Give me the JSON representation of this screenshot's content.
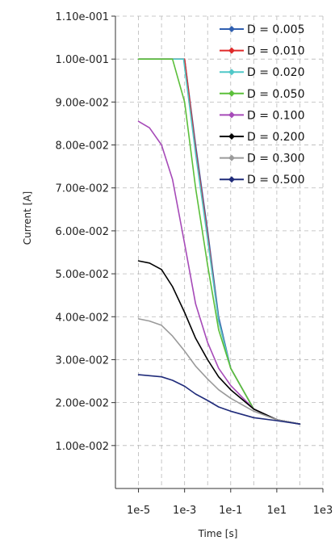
{
  "chart_data": {
    "type": "line",
    "xlabel": "Time [s]",
    "ylabel": "Current [A]",
    "x_scale": "log",
    "xlim": [
      1e-06,
      1000
    ],
    "ylim": [
      0,
      0.11
    ],
    "grid": true,
    "legend_placement": "top-right",
    "x_ticks": [
      {
        "value": 1e-05,
        "label": "1e-5"
      },
      {
        "value": 0.001,
        "label": "1e-3"
      },
      {
        "value": 0.1,
        "label": "1e-1"
      },
      {
        "value": 10,
        "label": "1e1"
      },
      {
        "value": 1000,
        "label": "1e3"
      }
    ],
    "y_ticks": [
      {
        "value": 0.01,
        "label": "1.00e-002"
      },
      {
        "value": 0.02,
        "label": "2.00e-002"
      },
      {
        "value": 0.03,
        "label": "3.00e-002"
      },
      {
        "value": 0.04,
        "label": "4.00e-002"
      },
      {
        "value": 0.05,
        "label": "5.00e-002"
      },
      {
        "value": 0.06,
        "label": "6.00e-002"
      },
      {
        "value": 0.07,
        "label": "7.00e-002"
      },
      {
        "value": 0.08,
        "label": "8.00e-002"
      },
      {
        "value": 0.09,
        "label": "9.00e-002"
      },
      {
        "value": 0.1,
        "label": "1.00e-001"
      },
      {
        "value": 0.11,
        "label": "1.10e-001"
      }
    ],
    "series": [
      {
        "name": "D = 0.005",
        "color": "#2f5fb0",
        "x": [
          1e-05,
          0.0001,
          0.001,
          0.003,
          0.01,
          0.03,
          0.1,
          1,
          10,
          100
        ],
        "y": [
          0.1,
          0.1,
          0.1,
          0.08,
          0.06,
          0.04,
          0.028,
          0.0185,
          0.016,
          0.015
        ]
      },
      {
        "name": "D = 0.010",
        "color": "#e02a2a",
        "x": [
          1e-05,
          0.0001,
          0.001,
          0.003,
          0.01,
          0.03,
          0.1,
          1,
          10,
          100
        ],
        "y": [
          0.1,
          0.1,
          0.1,
          0.079,
          0.059,
          0.039,
          0.028,
          0.0185,
          0.016,
          0.015
        ]
      },
      {
        "name": "D = 0.020",
        "color": "#4fc8c8",
        "x": [
          1e-05,
          0.0001,
          0.0009,
          0.003,
          0.01,
          0.03,
          0.1,
          1,
          10,
          100
        ],
        "y": [
          0.1,
          0.1,
          0.1,
          0.078,
          0.058,
          0.039,
          0.028,
          0.0185,
          0.016,
          0.015
        ]
      },
      {
        "name": "D = 0.050",
        "color": "#5bbf3a",
        "x": [
          1e-05,
          0.0001,
          0.0003,
          0.001,
          0.003,
          0.01,
          0.03,
          0.1,
          1,
          10,
          100
        ],
        "y": [
          0.1,
          0.1,
          0.1,
          0.09,
          0.07,
          0.052,
          0.037,
          0.028,
          0.0185,
          0.016,
          0.015
        ]
      },
      {
        "name": "D = 0.100",
        "color": "#a64ab8",
        "x": [
          1e-05,
          3e-05,
          0.0001,
          0.0003,
          0.001,
          0.003,
          0.01,
          0.03,
          0.1,
          1,
          10,
          100
        ],
        "y": [
          0.0855,
          0.084,
          0.08,
          0.072,
          0.057,
          0.043,
          0.034,
          0.028,
          0.024,
          0.0185,
          0.016,
          0.015
        ]
      },
      {
        "name": "D = 0.200",
        "color": "#000000",
        "x": [
          1e-05,
          3e-05,
          0.0001,
          0.0003,
          0.001,
          0.003,
          0.01,
          0.03,
          0.1,
          1,
          10,
          100
        ],
        "y": [
          0.053,
          0.0525,
          0.051,
          0.047,
          0.041,
          0.035,
          0.03,
          0.026,
          0.023,
          0.0185,
          0.016,
          0.015
        ]
      },
      {
        "name": "D = 0.300",
        "color": "#9a9a9a",
        "x": [
          1e-05,
          3e-05,
          0.0001,
          0.0003,
          0.001,
          0.003,
          0.01,
          0.03,
          0.1,
          1,
          10,
          100
        ],
        "y": [
          0.0395,
          0.039,
          0.038,
          0.0355,
          0.032,
          0.0285,
          0.0255,
          0.023,
          0.021,
          0.018,
          0.016,
          0.015
        ]
      },
      {
        "name": "D = 0.500",
        "color": "#1f2b7a",
        "x": [
          1e-05,
          0.0001,
          0.0003,
          0.001,
          0.003,
          0.01,
          0.03,
          0.1,
          1,
          10,
          100
        ],
        "y": [
          0.0265,
          0.026,
          0.0252,
          0.0238,
          0.022,
          0.0205,
          0.019,
          0.018,
          0.0165,
          0.0158,
          0.015
        ]
      }
    ]
  }
}
